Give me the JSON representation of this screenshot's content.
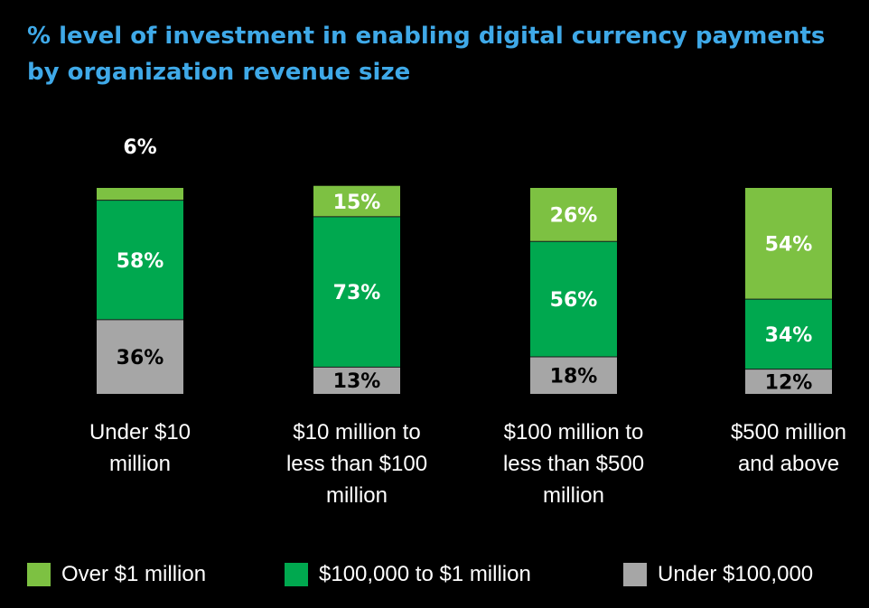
{
  "title": {
    "line1": "% level of investment in enabling digital currency payments",
    "line2": "by organization revenue size"
  },
  "colors": {
    "background": "#000000",
    "title": "#3fa9e8",
    "over_1m": "#7dc142",
    "mid": "#00a84f",
    "under_100k": "#a6a6a6"
  },
  "chart_data": {
    "type": "bar",
    "stacked": true,
    "percent": true,
    "title": "% level of investment in enabling digital currency payments by organization revenue size",
    "categories": [
      [
        "Under $10",
        "million"
      ],
      [
        "$10 million to",
        "less than $100",
        "million"
      ],
      [
        "$100 million to",
        "less than $500",
        "million"
      ],
      [
        "$500 million",
        "and above"
      ]
    ],
    "series": [
      {
        "name": "Under $100,000",
        "color": "#a6a6a6",
        "label_color": "#000000",
        "values": [
          36,
          13,
          18,
          12
        ],
        "labels": [
          "36%",
          "13%",
          "18%",
          "12%"
        ]
      },
      {
        "name": "$100,000 to $1 million",
        "color": "#00a84f",
        "label_color": "#ffffff",
        "values": [
          58,
          73,
          56,
          34
        ],
        "labels": [
          "58%",
          "73%",
          "56%",
          "34%"
        ]
      },
      {
        "name": "Over $1 million",
        "color": "#7dc142",
        "label_color": "#ffffff",
        "values": [
          6,
          15,
          26,
          54
        ],
        "labels": [
          "6%",
          "15%",
          "26%",
          "54%"
        ]
      }
    ],
    "ylim": [
      0,
      100
    ],
    "legend_position": "bottom"
  },
  "legend": [
    {
      "label": "Over $1 million",
      "color": "#7dc142"
    },
    {
      "label": "$100,000 to $1 million",
      "color": "#00a84f"
    },
    {
      "label": "Under $100,000",
      "color": "#a6a6a6"
    }
  ]
}
